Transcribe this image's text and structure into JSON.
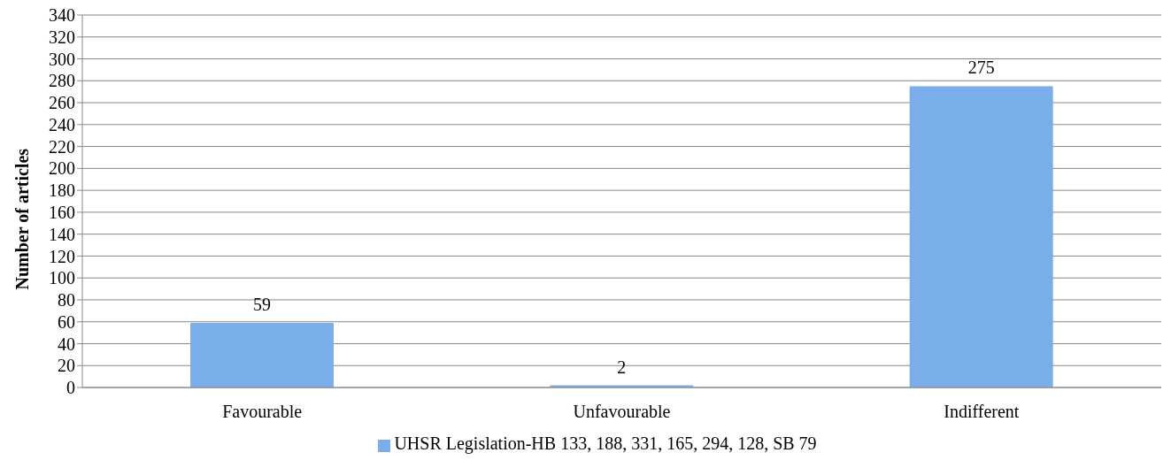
{
  "chart_data": {
    "type": "bar",
    "ylabel": "Number of articles",
    "categories": [
      "Favourable",
      "Unfavourable",
      "Indifferent"
    ],
    "series": [
      {
        "name": "UHSR Legislation-HB 133, 188, 331, 165, 294, 128, SB 79",
        "color": "#7aaeea",
        "values": [
          59,
          2,
          275
        ]
      }
    ],
    "ylim": [
      0,
      340
    ],
    "yticks": [
      0,
      20,
      40,
      60,
      80,
      100,
      120,
      140,
      160,
      180,
      200,
      220,
      240,
      260,
      280,
      300,
      320,
      340
    ],
    "grid": "y",
    "legend": "bottom",
    "data_labels": true
  }
}
